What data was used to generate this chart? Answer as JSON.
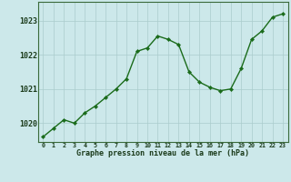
{
  "x": [
    0,
    1,
    2,
    3,
    4,
    5,
    6,
    7,
    8,
    9,
    10,
    11,
    12,
    13,
    14,
    15,
    16,
    17,
    18,
    19,
    20,
    21,
    22,
    23
  ],
  "y": [
    1019.6,
    1019.85,
    1020.1,
    1020.0,
    1020.3,
    1020.5,
    1020.75,
    1021.0,
    1021.3,
    1022.1,
    1022.2,
    1022.55,
    1022.45,
    1022.3,
    1021.5,
    1021.2,
    1021.05,
    1020.95,
    1021.0,
    1021.6,
    1022.45,
    1022.7,
    1023.1,
    1023.2
  ],
  "line_color": "#1a6b1a",
  "marker": "D",
  "marker_size": 2.2,
  "bg_color": "#cce8ea",
  "grid_color": "#aacccc",
  "xlabel": "Graphe pression niveau de la mer (hPa)",
  "xlabel_color": "#1a3a1a",
  "tick_label_color": "#1a3a1a",
  "ylim": [
    1019.45,
    1023.55
  ],
  "yticks": [
    1020,
    1021,
    1022,
    1023
  ],
  "xticks": [
    0,
    1,
    2,
    3,
    4,
    5,
    6,
    7,
    8,
    9,
    10,
    11,
    12,
    13,
    14,
    15,
    16,
    17,
    18,
    19,
    20,
    21,
    22,
    23
  ],
  "xtick_labels": [
    "0",
    "1",
    "2",
    "3",
    "4",
    "5",
    "6",
    "7",
    "8",
    "9",
    "10",
    "11",
    "12",
    "13",
    "14",
    "15",
    "16",
    "17",
    "18",
    "19",
    "20",
    "21",
    "22",
    "23"
  ],
  "spine_color": "#3a6a3a",
  "line_width": 1.0
}
